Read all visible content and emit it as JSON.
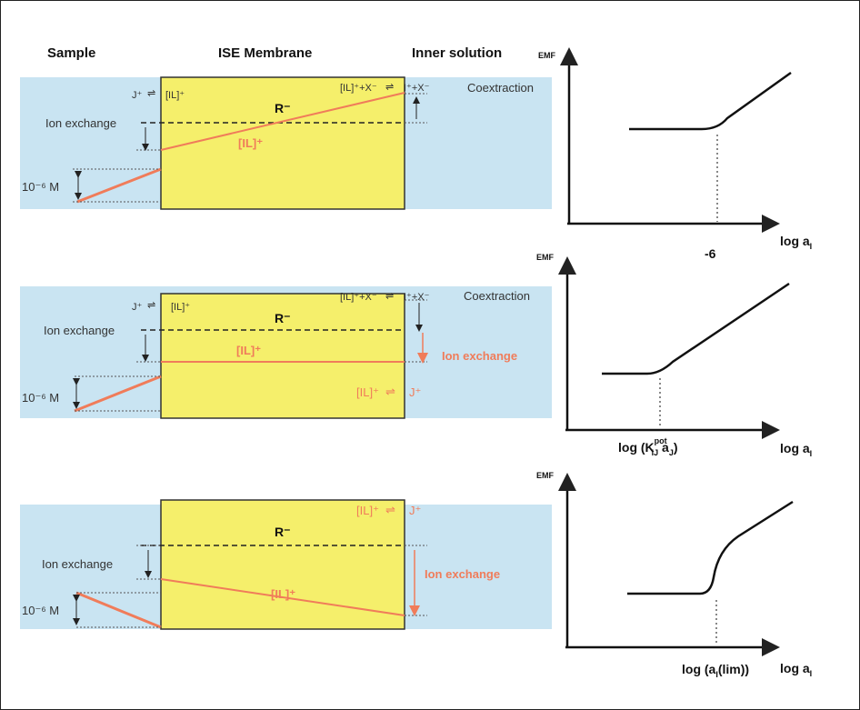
{
  "headers": {
    "sample": "Sample",
    "membrane": "ISE Membrane",
    "inner": "Inner solution"
  },
  "colors": {
    "solution_bg": "#c9e4f2",
    "membrane_fill": "#f5ef6b",
    "profile_line": "#f07c5a",
    "text_orange": "#f07c5a"
  },
  "labels": {
    "j_plus": "J⁺",
    "il_plus": "[IL]⁺",
    "r_minus": "R⁻",
    "il_x": "[IL]⁺+X⁻",
    "i_x": "I⁺+X⁻",
    "coextraction": "Coextraction",
    "ion_exchange": "Ion exchange",
    "conc": "10⁻⁶ M"
  },
  "panels": [
    {
      "inner_ion_exchange": ""
    },
    {
      "inner_ion_exchange": "Ion exchange",
      "inner_il": "[IL]⁺",
      "inner_j": "J⁺"
    },
    {
      "inner_ion_exchange": "Ion exchange",
      "inner_il": "[IL]⁺",
      "inner_j": "J⁺"
    }
  ],
  "charts": [
    {
      "ylabel": "EMF",
      "xlabel": "log a",
      "xlabel_sub": "I",
      "tick": "-6"
    },
    {
      "ylabel": "EMF",
      "xlabel": "log a",
      "xlabel_sub": "I",
      "tick": "log (K",
      "tick_sup": "pot",
      "tick_sub": "IJ",
      "tick_tail": " a",
      "tick_tail_sub": "J",
      "tick_end": ")"
    },
    {
      "ylabel": "EMF",
      "xlabel": "log a",
      "xlabel_sub": "I",
      "tick": "log (a",
      "tick_sub": "I",
      "tick_end": "(lim))"
    }
  ]
}
